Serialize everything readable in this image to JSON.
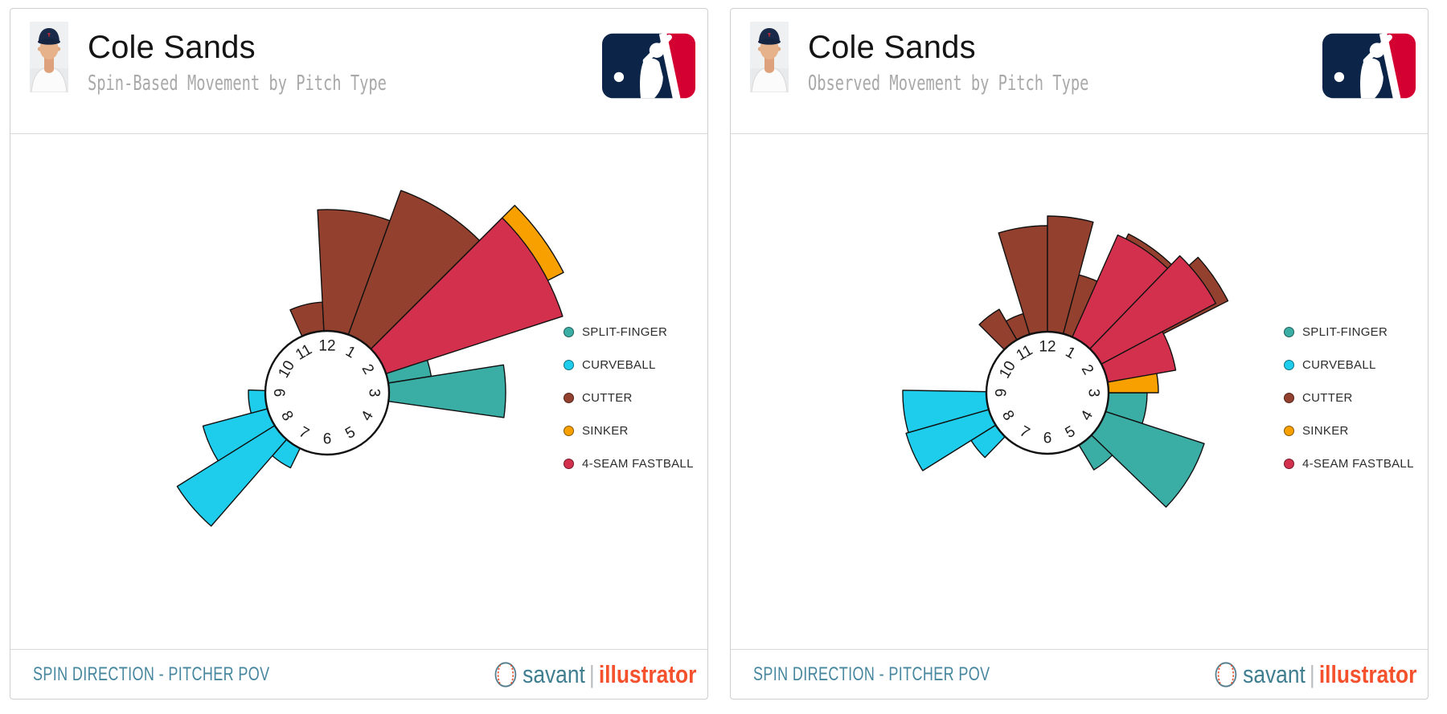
{
  "page": {
    "background": "#ffffff"
  },
  "brand": {
    "savant": "savant",
    "divider": "|",
    "illustrator": "illustrator"
  },
  "colors": {
    "split_finger": "#3AADA5",
    "curveball": "#1DCDEB",
    "cutter": "#94402F",
    "sinker": "#F7A000",
    "four_seam_fastball": "#D2304C",
    "footer_text": "#46869E",
    "savant_teal": "#3E7E8F",
    "illustrator_orange": "#F4512C",
    "mlb_navy": "#0B2447",
    "mlb_red": "#D50032",
    "panel_border": "#CFCFCF"
  },
  "legend": {
    "items": [
      {
        "label": "SPLIT-FINGER",
        "color": "#3AADA5"
      },
      {
        "label": "CURVEBALL",
        "color": "#1DCDEB"
      },
      {
        "label": "CUTTER",
        "color": "#94402F"
      },
      {
        "label": "SINKER",
        "color": "#F7A000"
      },
      {
        "label": "4-SEAM FASTBALL",
        "color": "#D2304C"
      }
    ]
  },
  "panels": [
    {
      "title": "Cole Sands",
      "subtitle": "Spin-Based Movement by Pitch Type",
      "footer": "SPIN DIRECTION - PITCHER POV"
    },
    {
      "title": "Cole Sands",
      "subtitle": "Observed Movement by Pitch Type",
      "footer": "SPIN DIRECTION - PITCHER POV"
    }
  ],
  "chart_data": [
    {
      "type": "polar-bar",
      "title": "Spin-Based Movement by Pitch Type",
      "angle_convention": "degrees clockwise from 12 o'clock, spin direction pitcher POV",
      "radial_axis": "unlabeled (wedge length = movement magnitude)",
      "clock_radius_px": 77,
      "hours": [
        "12",
        "1",
        "2",
        "3",
        "4",
        "5",
        "6",
        "7",
        "8",
        "9",
        "10",
        "11"
      ],
      "legend_position": "right",
      "draw_order": [
        "SPLIT-FINGER",
        "CURVEBALL",
        "CUTTER",
        "SINKER",
        "4-SEAM FASTBALL"
      ],
      "series": [
        {
          "name": "SPLIT-FINGER",
          "color": "#3AADA5",
          "wedges": [
            {
              "start": 64,
              "end": 81,
              "r": 131
            },
            {
              "start": 81,
              "end": 98,
              "r": 222
            }
          ]
        },
        {
          "name": "CURVEBALL",
          "color": "#1DCDEB",
          "wedges": [
            {
              "start": 206,
              "end": 221,
              "r": 104
            },
            {
              "start": 221,
              "end": 238,
              "r": 220
            },
            {
              "start": 238,
              "end": 255,
              "r": 160
            },
            {
              "start": 255,
              "end": 272,
              "r": 98
            }
          ]
        },
        {
          "name": "CUTTER",
          "color": "#94402F",
          "wedges": [
            {
              "start": -24,
              "end": -3,
              "r": 113
            },
            {
              "start": -3,
              "end": 20,
              "r": 228
            },
            {
              "start": 20,
              "end": 45,
              "r": 268
            }
          ]
        },
        {
          "name": "SINKER",
          "color": "#F7A000",
          "wedges": [
            {
              "start": 45,
              "end": 63,
              "r": 330
            }
          ]
        },
        {
          "name": "4-SEAM FASTBALL",
          "color": "#D2304C",
          "wedges": [
            {
              "start": 45,
              "end": 72,
              "r": 308
            }
          ]
        }
      ]
    },
    {
      "type": "polar-bar",
      "title": "Observed Movement by Pitch Type",
      "angle_convention": "degrees clockwise from 12 o'clock, spin direction pitcher POV",
      "radial_axis": "unlabeled (wedge length = movement magnitude)",
      "clock_radius_px": 76,
      "hours": [
        "12",
        "1",
        "2",
        "3",
        "4",
        "5",
        "6",
        "7",
        "8",
        "9",
        "10",
        "11"
      ],
      "legend_position": "right",
      "draw_order": [
        "SPLIT-FINGER",
        "CURVEBALL",
        "CUTTER",
        "SINKER",
        "4-SEAM FASTBALL"
      ],
      "series": [
        {
          "name": "SPLIT-FINGER",
          "color": "#3AADA5",
          "wedges": [
            {
              "start": 90,
              "end": 108,
              "r": 124
            },
            {
              "start": 108,
              "end": 134,
              "r": 205
            },
            {
              "start": 134,
              "end": 149,
              "r": 112
            }
          ]
        },
        {
          "name": "CURVEBALL",
          "color": "#1DCDEB",
          "wedges": [
            {
              "start": 224,
              "end": 238,
              "r": 112
            },
            {
              "start": 238,
              "end": 254,
              "r": 183
            },
            {
              "start": 254,
              "end": 271,
              "r": 180
            }
          ]
        },
        {
          "name": "CUTTER",
          "color": "#94402F",
          "wedges": [
            {
              "start": -45,
              "end": -30,
              "r": 120
            },
            {
              "start": -30,
              "end": -17,
              "r": 103
            },
            {
              "start": -17,
              "end": 0,
              "r": 208
            },
            {
              "start": 0,
              "end": 15,
              "r": 220
            },
            {
              "start": 15,
              "end": 29,
              "r": 152
            },
            {
              "start": 27,
              "end": 45,
              "r": 222
            },
            {
              "start": 48,
              "end": 63,
              "r": 252
            }
          ]
        },
        {
          "name": "SINKER",
          "color": "#F7A000",
          "wedges": [
            {
              "start": 76,
              "end": 90,
              "r": 138
            }
          ]
        },
        {
          "name": "4-SEAM FASTBALL",
          "color": "#D2304C",
          "wedges": [
            {
              "start": 24,
              "end": 44,
              "r": 215
            },
            {
              "start": 44,
              "end": 62,
              "r": 237
            },
            {
              "start": 62,
              "end": 80,
              "r": 162
            }
          ]
        }
      ]
    }
  ]
}
